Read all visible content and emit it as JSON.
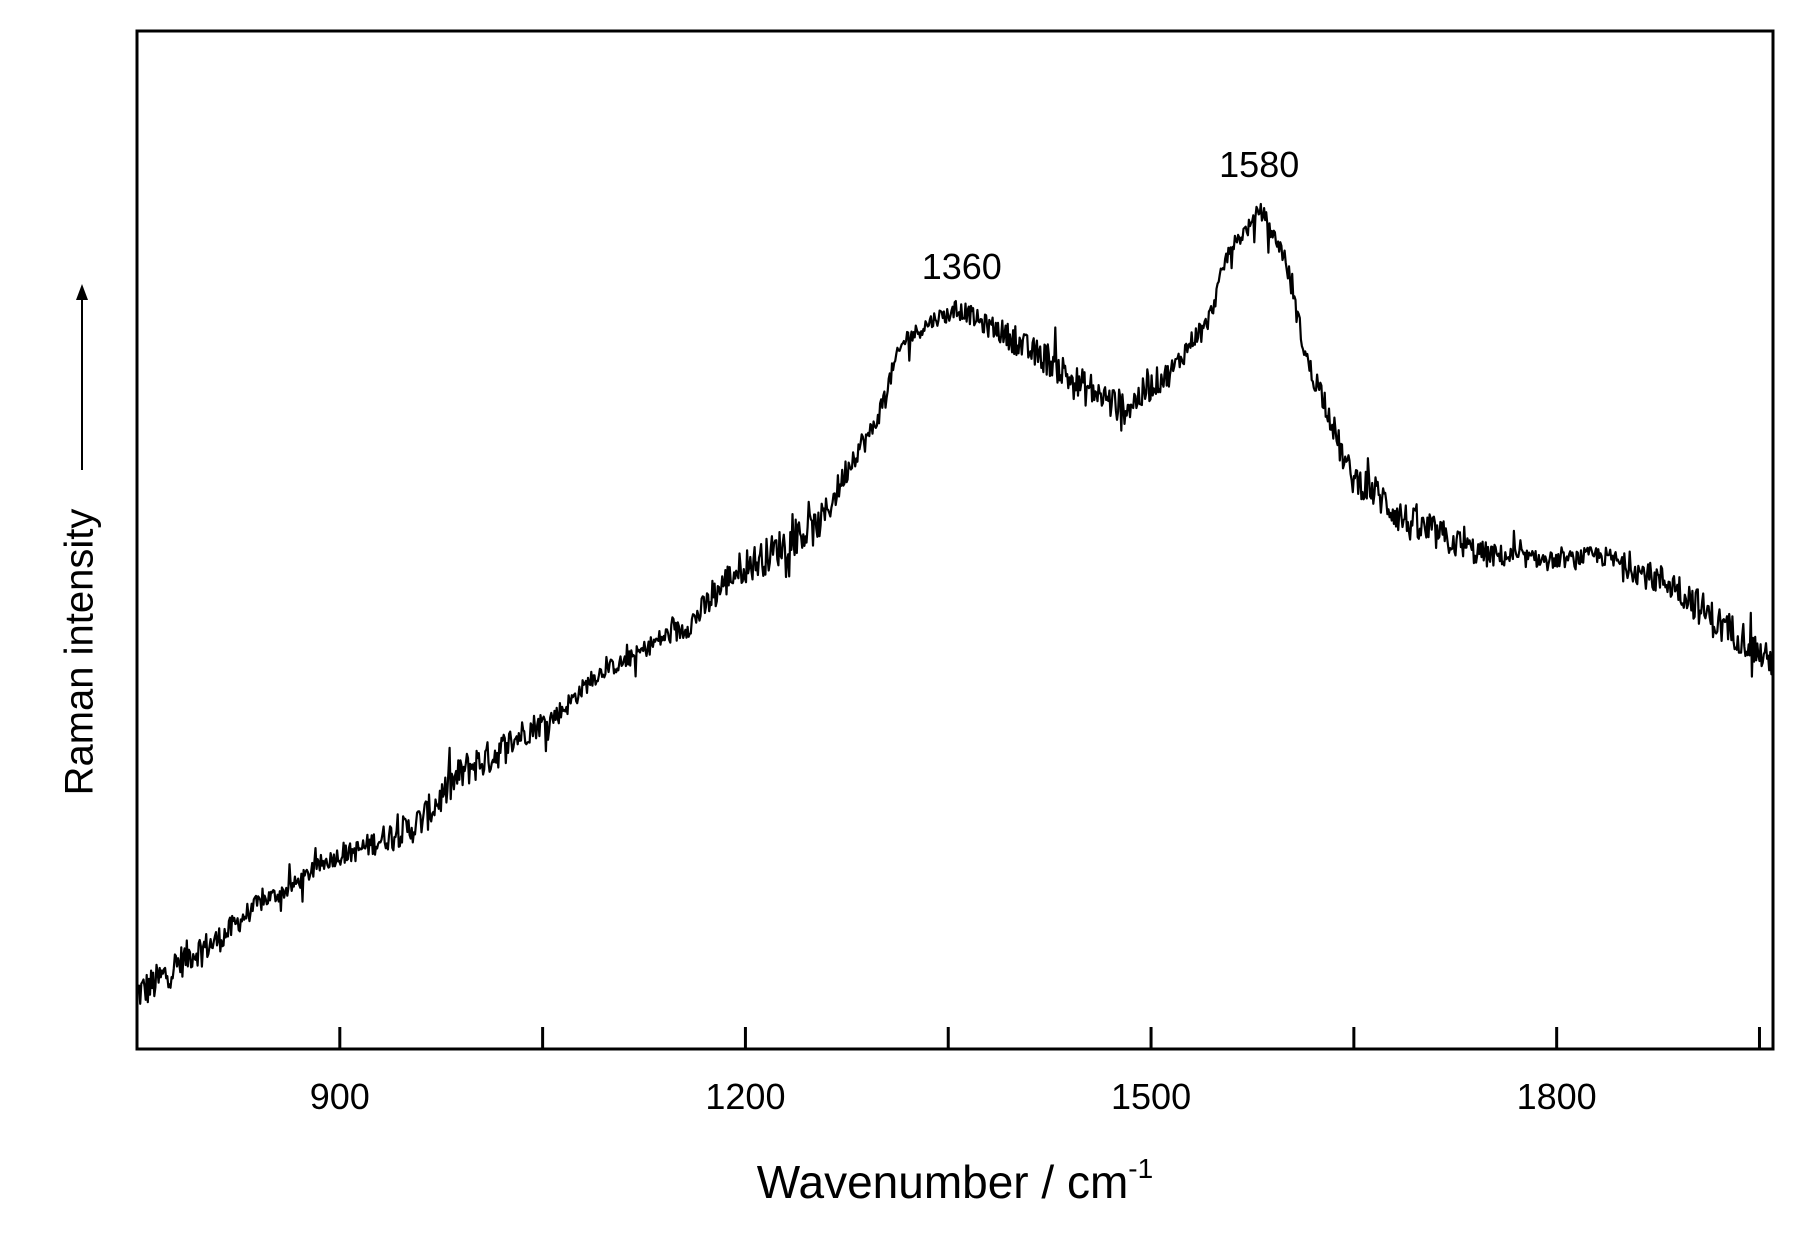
{
  "chart_data": {
    "type": "line",
    "xlabel": "Wavenumber / cm",
    "xlabel_superscript": "-1",
    "ylabel": "Raman intensity",
    "xlim": [
      750,
      1960
    ],
    "ylim": [
      0,
      100
    ],
    "x_ticks_major": [
      900,
      1200,
      1500,
      1800
    ],
    "x_tick_labels": [
      "900",
      "1200",
      "1500",
      "1800"
    ],
    "x_ticks_minor": [
      1050,
      1350,
      1650,
      1950
    ],
    "y_ticks": [],
    "grid": false,
    "legend": "none",
    "series": [
      {
        "color": "#000000",
        "noisy": true,
        "x": [
          750,
          800,
          850,
          900,
          950,
          1000,
          1050,
          1100,
          1150,
          1200,
          1250,
          1290,
          1320,
          1345,
          1360,
          1380,
          1420,
          1450,
          1480,
          1510,
          1540,
          1560,
          1575,
          1580,
          1595,
          1620,
          1650,
          1700,
          1750,
          1800,
          1830,
          1880,
          1930,
          1960
        ],
        "y": [
          5.5,
          10,
          15,
          19,
          21.5,
          28,
          32,
          37.5,
          41,
          47.5,
          51,
          60,
          70,
          72,
          72.5,
          71,
          68,
          65,
          63,
          66,
          71,
          79,
          81,
          82.5,
          79,
          66,
          56,
          51,
          48.5,
          48,
          48.5,
          46,
          41,
          38
        ]
      }
    ],
    "annotations": [
      {
        "text": "1360",
        "x": 1360,
        "y": 72.5
      },
      {
        "text": "1580",
        "x": 1580,
        "y": 82.5
      }
    ]
  }
}
